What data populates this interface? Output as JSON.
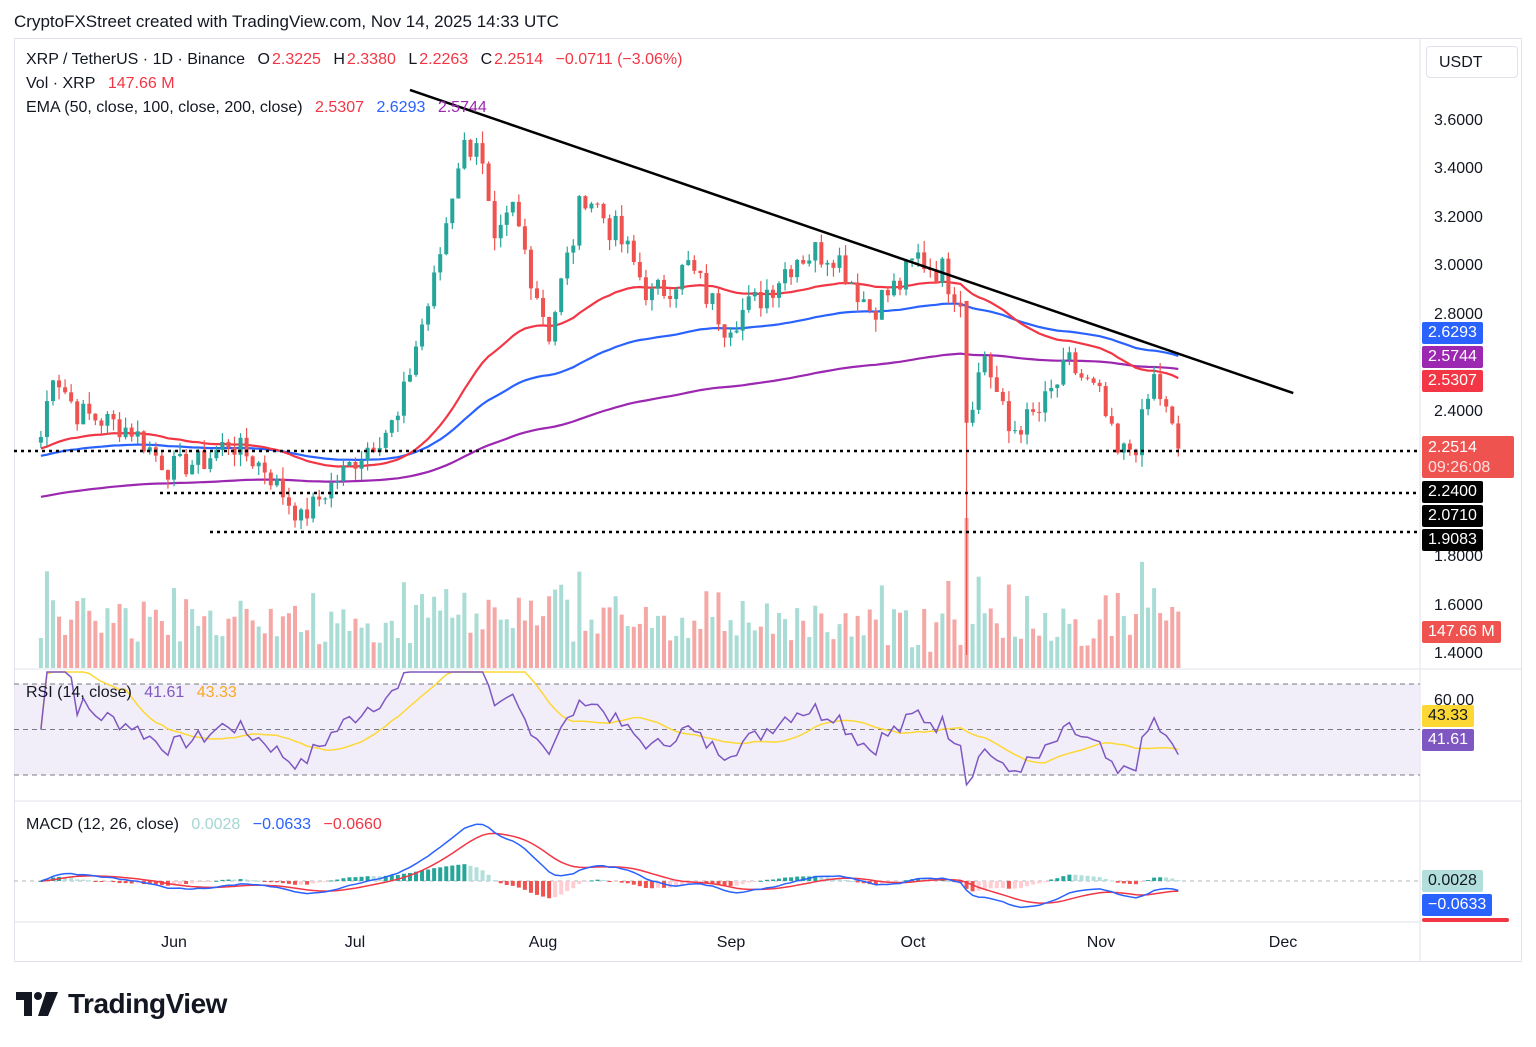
{
  "header": {
    "attribution": "CryptoFXStreet created with TradingView.com, Nov 14, 2025 14:33 UTC"
  },
  "legend": {
    "symbol": "XRP / TetherUS · 1D · Binance",
    "open_label": "O",
    "open": "2.3225",
    "high_label": "H",
    "high": "2.3380",
    "low_label": "L",
    "low": "2.2263",
    "close_label": "C",
    "close": "2.2514",
    "change": "−0.0711 (−3.06%)",
    "vol_label": "Vol · XRP",
    "vol_value": "147.66 M",
    "ema_label": "EMA (50, close, 100, close, 200, close)",
    "ema50": "2.5307",
    "ema100": "2.6293",
    "ema200": "2.5744",
    "rsi_label": "RSI (14, close)",
    "rsi_value": "41.61",
    "rsi_ma": "43.33",
    "macd_label": "MACD (12, 26, close)",
    "macd_hist": "0.0028",
    "macd_line": "−0.0633",
    "macd_signal": "−0.0660"
  },
  "price_axis": {
    "currency": "USDT",
    "ticks": [
      "3.6000",
      "3.4000",
      "3.2000",
      "3.0000",
      "2.8000",
      "2.4000",
      "1.8000",
      "1.6000",
      "1.4000"
    ],
    "badges": {
      "ema100": "2.6293",
      "ema200": "2.5744",
      "ema50": "2.5307",
      "last_price": "2.2514",
      "countdown": "09:26:08",
      "level1": "2.2400",
      "level2": "2.0710",
      "level3": "1.9083",
      "volume": "147.66 M"
    }
  },
  "rsi_axis": {
    "tick": "60.00",
    "ma_badge": "43.33",
    "rsi_badge": "41.61"
  },
  "macd_axis": {
    "hist_badge": "0.0028",
    "line_badge": "−0.0633"
  },
  "time_axis": {
    "months": [
      "Jun",
      "Jul",
      "Aug",
      "Sep",
      "Oct",
      "Nov",
      "Dec"
    ]
  },
  "colors": {
    "up": "#26a69a",
    "down": "#ef5350",
    "ema50": "#f23645",
    "ema100": "#2962ff",
    "ema200": "#9c27b0",
    "rsi": "#7e57c2",
    "rsi_ma": "#fdd835",
    "trendline": "#000000"
  },
  "brand": {
    "name": "TradingView"
  },
  "chart_data": {
    "type": "candlestick",
    "symbol": "XRP/USDT",
    "timeframe": "1D",
    "ylim": [
      1.4,
      3.7
    ],
    "key_levels": [
      2.24,
      2.071,
      1.9083
    ],
    "trendline": {
      "from": [
        "2025-07-10",
        3.73
      ],
      "to": [
        "2025-12-03",
        2.48
      ]
    },
    "ema_last": {
      "ema50": 2.5307,
      "ema100": 2.6293,
      "ema200": 2.5744
    },
    "ohlc_anchor_closes": [
      [
        "2025-05-10",
        2.3
      ],
      [
        "2025-05-12",
        2.58
      ],
      [
        "2025-05-16",
        2.4
      ],
      [
        "2025-05-20",
        2.37
      ],
      [
        "2025-05-25",
        2.33
      ],
      [
        "2025-05-31",
        2.17
      ],
      [
        "2025-06-06",
        2.2
      ],
      [
        "2025-06-10",
        2.28
      ],
      [
        "2025-06-16",
        2.17
      ],
      [
        "2025-06-22",
        1.96
      ],
      [
        "2025-06-27",
        2.1
      ],
      [
        "2025-07-03",
        2.26
      ],
      [
        "2025-07-08",
        2.37
      ],
      [
        "2025-07-11",
        2.68
      ],
      [
        "2025-07-14",
        2.93
      ],
      [
        "2025-07-18",
        3.45
      ],
      [
        "2025-07-21",
        3.55
      ],
      [
        "2025-07-24",
        3.05
      ],
      [
        "2025-07-27",
        3.23
      ],
      [
        "2025-08-02",
        2.73
      ],
      [
        "2025-08-08",
        3.32
      ],
      [
        "2025-08-14",
        3.1
      ],
      [
        "2025-08-19",
        2.87
      ],
      [
        "2025-08-25",
        3.0
      ],
      [
        "2025-08-31",
        2.77
      ],
      [
        "2025-09-05",
        2.85
      ],
      [
        "2025-09-12",
        3.05
      ],
      [
        "2025-09-18",
        3.07
      ],
      [
        "2025-09-24",
        2.83
      ],
      [
        "2025-09-29",
        2.93
      ],
      [
        "2025-10-02",
        3.04
      ],
      [
        "2025-10-06",
        2.98
      ],
      [
        "2025-10-09",
        2.88
      ],
      [
        "2025-10-10",
        2.38
      ],
      [
        "2025-10-13",
        2.64
      ],
      [
        "2025-10-17",
        2.32
      ],
      [
        "2025-10-22",
        2.4
      ],
      [
        "2025-10-27",
        2.6
      ],
      [
        "2025-11-01",
        2.46
      ],
      [
        "2025-11-04",
        2.22
      ],
      [
        "2025-11-07",
        2.27
      ],
      [
        "2025-11-10",
        2.54
      ],
      [
        "2025-11-14",
        2.2514
      ]
    ],
    "volume_last": "147.66 M",
    "rsi": {
      "period": 14,
      "last": 41.61,
      "ma": 43.33,
      "levels": [
        70,
        60,
        30
      ]
    },
    "macd": {
      "fast": 12,
      "slow": 26,
      "hist": 0.0028,
      "macd": -0.0633,
      "signal": -0.066
    },
    "x_ticks": [
      "Jun",
      "Jul",
      "Aug",
      "Sep",
      "Oct",
      "Nov",
      "Dec"
    ]
  }
}
